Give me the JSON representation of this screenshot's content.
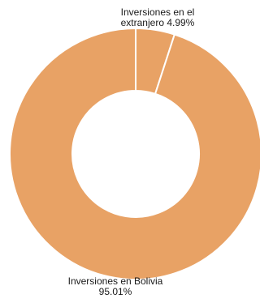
{
  "chart_data": {
    "type": "pie",
    "style": "donut",
    "slices": [
      {
        "label": "Inversiones en el extranjero",
        "value": 4.99,
        "display": "4.99%",
        "color": "#E8A265",
        "label_lines": [
          "Inversiones en el",
          "extranjero 4.99%"
        ]
      },
      {
        "label": "Inversiones en Bolivia",
        "value": 95.01,
        "display": "95.01%",
        "color": "#E8A265",
        "label_lines": [
          "Inversiones en Bolivia",
          "95.01%"
        ]
      }
    ],
    "separator_color": "#ffffff",
    "legend": "none"
  }
}
